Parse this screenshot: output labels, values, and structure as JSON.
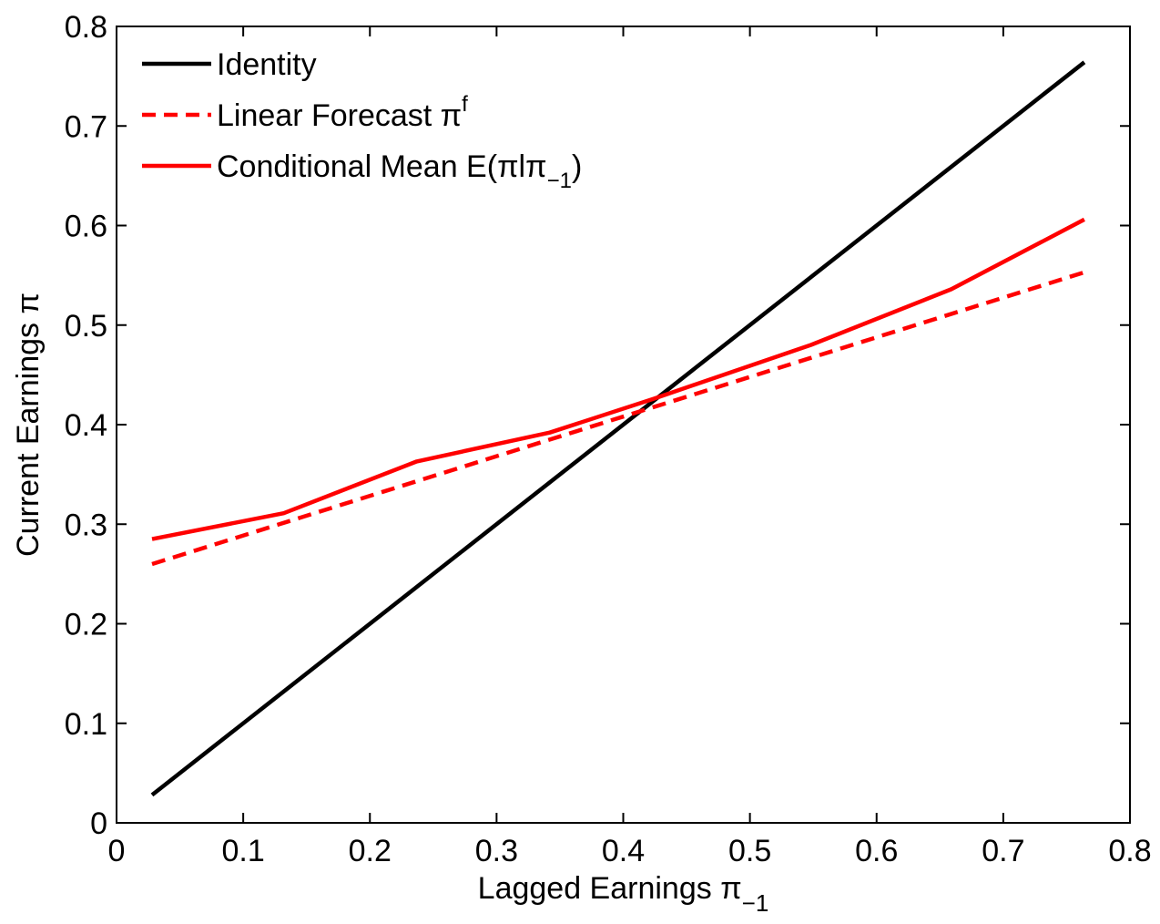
{
  "chart_data": {
    "type": "line",
    "title": "",
    "xlabel": {
      "main": "Lagged Earnings ",
      "symbol": "π",
      "sub": "−1"
    },
    "ylabel": {
      "main": "Current Earnings ",
      "symbol": "π"
    },
    "xlim": [
      0,
      0.8
    ],
    "ylim": [
      0,
      0.8
    ],
    "xticks": [
      0,
      0.1,
      0.2,
      0.3,
      0.4,
      0.5,
      0.6,
      0.7,
      0.8
    ],
    "yticks": [
      0,
      0.1,
      0.2,
      0.3,
      0.4,
      0.5,
      0.6,
      0.7,
      0.8
    ],
    "xtick_labels": [
      "0",
      "0.1",
      "0.2",
      "0.3",
      "0.4",
      "0.5",
      "0.6",
      "0.7",
      "0.8"
    ],
    "ytick_labels": [
      "0",
      "0.1",
      "0.2",
      "0.3",
      "0.4",
      "0.5",
      "0.6",
      "0.7",
      "0.8"
    ],
    "grid": false,
    "legend_position": "top-left",
    "series": [
      {
        "key": "identity",
        "color": "#000000",
        "dash": "solid",
        "legend": {
          "main": "Identity"
        },
        "x": [
          0.028,
          0.764
        ],
        "y": [
          0.028,
          0.764
        ]
      },
      {
        "key": "linear_forecast",
        "color": "#ff0000",
        "dash": "dashed",
        "legend": {
          "main": "Linear Forecast ",
          "symbol": "π",
          "sup": "f"
        },
        "x": [
          0.028,
          0.764
        ],
        "y": [
          0.26,
          0.553
        ]
      },
      {
        "key": "conditional_mean",
        "color": "#ff0000",
        "dash": "solid",
        "legend": {
          "main": "Conditional Mean E(",
          "symbol": "π",
          "mid": "l",
          "symbol2": "π",
          "sub": "−1",
          "tail": ")"
        },
        "x": [
          0.028,
          0.132,
          0.237,
          0.342,
          0.424,
          0.548,
          0.659,
          0.764
        ],
        "y": [
          0.285,
          0.311,
          0.363,
          0.392,
          0.426,
          0.48,
          0.536,
          0.606
        ]
      }
    ]
  }
}
